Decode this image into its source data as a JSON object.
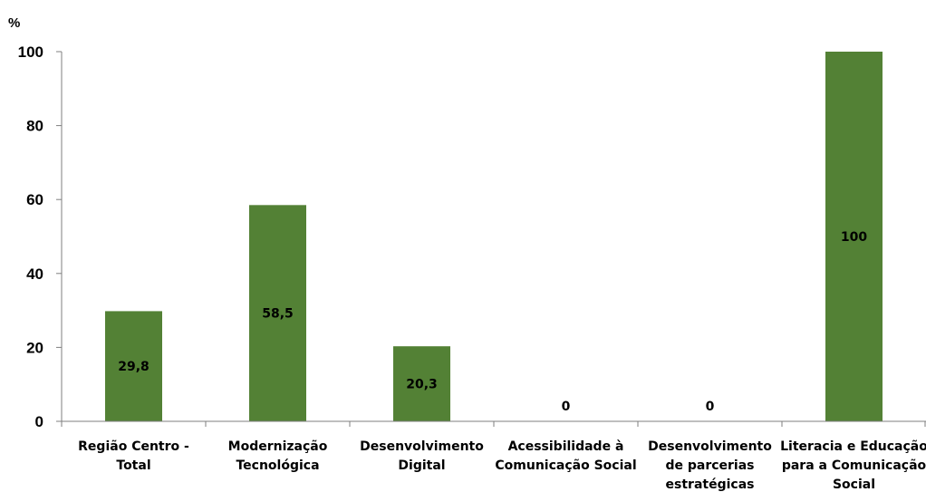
{
  "chart_data": {
    "type": "bar",
    "unit_label": "%",
    "categories": [
      [
        "Região Centro -",
        "Total"
      ],
      [
        "Modernização",
        "Tecnológica"
      ],
      [
        "Desenvolvimento",
        "Digital"
      ],
      [
        "Acessibilidade à",
        "Comunicação Social"
      ],
      [
        "Desenvolvimento",
        "de parcerias",
        "estratégicas"
      ],
      [
        "Literacia e Educação",
        "para a Comunicação",
        "Social"
      ]
    ],
    "values": [
      29.8,
      58.5,
      20.3,
      0,
      0,
      100
    ],
    "data_labels": [
      "29,8",
      "58,5",
      "20,3",
      "0",
      "0",
      "100"
    ],
    "ylim": [
      0,
      100
    ],
    "yticks": [
      0,
      20,
      40,
      60,
      80,
      100
    ],
    "grid": false,
    "legend": "none",
    "bar_color": "#538135",
    "axis_color": "#7f7f7f"
  }
}
